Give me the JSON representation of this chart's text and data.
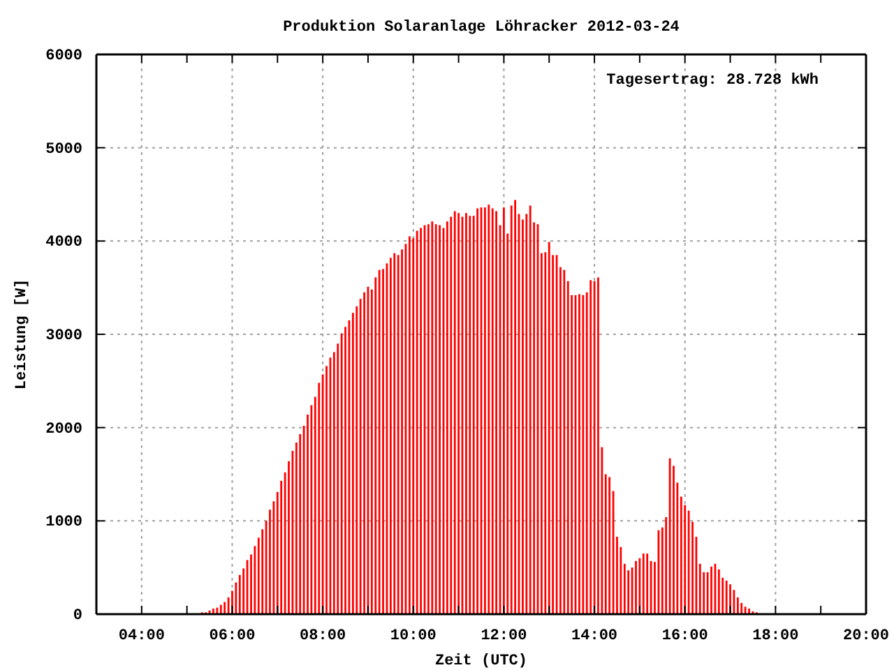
{
  "chart_data": {
    "type": "bar",
    "title": "Produktion Solaranlage Löhracker 2012-03-24",
    "xlabel": "Zeit (UTC)",
    "ylabel": "Leistung [W]",
    "annotations": [
      "Tagesertrag: 28.728 kWh"
    ],
    "x": [
      5.333,
      5.417,
      5.5,
      5.583,
      5.667,
      5.75,
      5.833,
      5.917,
      6,
      6.083,
      6.167,
      6.25,
      6.333,
      6.417,
      6.5,
      6.583,
      6.667,
      6.75,
      6.833,
      6.917,
      7,
      7.083,
      7.167,
      7.25,
      7.333,
      7.417,
      7.5,
      7.583,
      7.667,
      7.75,
      7.833,
      7.917,
      8,
      8.083,
      8.167,
      8.25,
      8.333,
      8.417,
      8.5,
      8.583,
      8.667,
      8.75,
      8.833,
      8.917,
      9,
      9.083,
      9.167,
      9.25,
      9.333,
      9.417,
      9.5,
      9.583,
      9.667,
      9.75,
      9.833,
      9.917,
      10,
      10.083,
      10.167,
      10.25,
      10.333,
      10.417,
      10.5,
      10.583,
      10.667,
      10.75,
      10.833,
      10.917,
      11,
      11.083,
      11.167,
      11.25,
      11.333,
      11.417,
      11.5,
      11.583,
      11.667,
      11.75,
      11.833,
      11.917,
      12,
      12.083,
      12.167,
      12.25,
      12.333,
      12.417,
      12.5,
      12.583,
      12.667,
      12.75,
      12.833,
      12.917,
      13,
      13.083,
      13.167,
      13.25,
      13.333,
      13.417,
      13.5,
      13.583,
      13.667,
      13.75,
      13.833,
      13.917,
      14,
      14.083,
      14.167,
      14.25,
      14.333,
      14.417,
      14.5,
      14.583,
      14.667,
      14.75,
      14.833,
      14.917,
      15,
      15.083,
      15.167,
      15.25,
      15.333,
      15.417,
      15.5,
      15.583,
      15.667,
      15.75,
      15.833,
      15.917,
      16,
      16.083,
      16.167,
      16.25,
      16.333,
      16.417,
      16.5,
      16.583,
      16.667,
      16.75,
      16.833,
      16.917,
      17,
      17.083,
      17.167,
      17.25,
      17.333,
      17.417,
      17.5,
      17.583
    ],
    "series": [
      {
        "color": "#ff0000",
        "values": [
          20,
          20,
          40,
          60,
          70,
          100,
          130,
          180,
          250,
          340,
          420,
          490,
          580,
          640,
          730,
          820,
          910,
          1000,
          1120,
          1210,
          1310,
          1430,
          1520,
          1640,
          1750,
          1840,
          1930,
          2020,
          2140,
          2240,
          2330,
          2480,
          2570,
          2660,
          2750,
          2810,
          2900,
          3010,
          3080,
          3150,
          3230,
          3300,
          3380,
          3450,
          3510,
          3480,
          3610,
          3690,
          3700,
          3760,
          3820,
          3870,
          3850,
          3910,
          3970,
          4050,
          4030,
          4110,
          4140,
          4170,
          4180,
          4210,
          4180,
          4170,
          4140,
          4210,
          4260,
          4320,
          4300,
          4260,
          4300,
          4270,
          4270,
          4350,
          4360,
          4360,
          4390,
          4350,
          4320,
          4170,
          4360,
          4080,
          4380,
          4440,
          4290,
          4230,
          4290,
          4380,
          4200,
          4180,
          3870,
          3880,
          3990,
          3850,
          3850,
          3720,
          3690,
          3570,
          3420,
          3420,
          3430,
          3420,
          3450,
          3580,
          3570,
          3610,
          1790,
          1500,
          1470,
          1320,
          830,
          720,
          540,
          470,
          500,
          570,
          600,
          650,
          650,
          570,
          560,
          900,
          930,
          1040,
          1670,
          1590,
          1410,
          1260,
          1170,
          1110,
          990,
          830,
          540,
          450,
          450,
          510,
          540,
          480,
          390,
          360,
          320,
          260,
          180,
          120,
          80,
          60,
          30,
          20
        ]
      }
    ],
    "xlim": [
      3,
      20
    ],
    "xticks": [
      {
        "value": 3,
        "label": null
      },
      {
        "value": 4,
        "label": "04:00"
      },
      {
        "value": 5,
        "label": null
      },
      {
        "value": 6,
        "label": "06:00"
      },
      {
        "value": 7,
        "label": null
      },
      {
        "value": 8,
        "label": "08:00"
      },
      {
        "value": 9,
        "label": null
      },
      {
        "value": 10,
        "label": "10:00"
      },
      {
        "value": 11,
        "label": null
      },
      {
        "value": 12,
        "label": "12:00"
      },
      {
        "value": 13,
        "label": null
      },
      {
        "value": 14,
        "label": "14:00"
      },
      {
        "value": 15,
        "label": null
      },
      {
        "value": 16,
        "label": "16:00"
      },
      {
        "value": 17,
        "label": null
      },
      {
        "value": 18,
        "label": "18:00"
      },
      {
        "value": 19,
        "label": null
      },
      {
        "value": 20,
        "label": "20:00"
      }
    ],
    "ylim": [
      0,
      6000
    ],
    "yticks": [
      0,
      1000,
      2000,
      3000,
      4000,
      5000,
      6000
    ],
    "grid": true
  }
}
